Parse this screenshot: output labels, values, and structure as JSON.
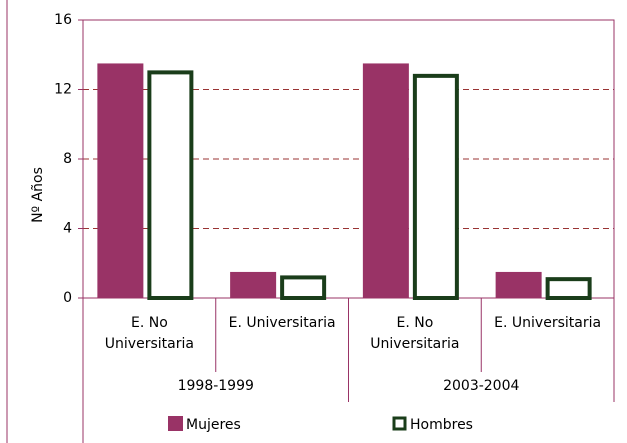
{
  "chart_data": {
    "type": "bar",
    "y_label": "Nº Años",
    "categories": [
      "E. No Universitaria",
      "E. Universitaria",
      "E. No Universitaria",
      "E. Universitaria"
    ],
    "groups": [
      "1998-1999",
      "2003-2004"
    ],
    "series": [
      {
        "name": "Mujeres",
        "color": "#993366",
        "style": "filled",
        "values": [
          13.5,
          1.5,
          13.5,
          1.5
        ]
      },
      {
        "name": "Hombres",
        "color": "#1a3d1a",
        "style": "outline",
        "values": [
          13.1,
          1.3,
          12.9,
          1.2
        ]
      }
    ],
    "ylim": [
      0,
      16
    ],
    "yticks": [
      0,
      4,
      8,
      12,
      16
    ],
    "grid": true
  }
}
